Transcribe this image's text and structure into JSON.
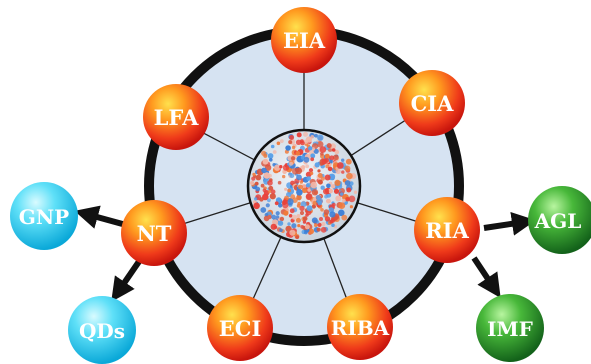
{
  "diagram": {
    "hub": {
      "name": "nanoparticle-hub"
    },
    "methods": [
      {
        "id": "eia",
        "label": "EIA"
      },
      {
        "id": "cia",
        "label": "CIA"
      },
      {
        "id": "ria",
        "label": "RIA"
      },
      {
        "id": "riba",
        "label": "RIBA"
      },
      {
        "id": "eci",
        "label": "ECI"
      },
      {
        "id": "nt",
        "label": "NT"
      },
      {
        "id": "lfa",
        "label": "LFA"
      }
    ],
    "nt_branches": [
      {
        "id": "gnp",
        "label": "GNP"
      },
      {
        "id": "qds",
        "label": "QDs"
      }
    ],
    "ria_branches": [
      {
        "id": "agl",
        "label": "AGL"
      },
      {
        "id": "imf",
        "label": "IMF"
      }
    ],
    "colors": {
      "ring_fill": "#d6e3f2",
      "ring_stroke": "#111111",
      "method_node": "#ef3a1a",
      "nt_branch_node": "#17c9ec",
      "ria_branch_node": "#1f8a22"
    }
  }
}
